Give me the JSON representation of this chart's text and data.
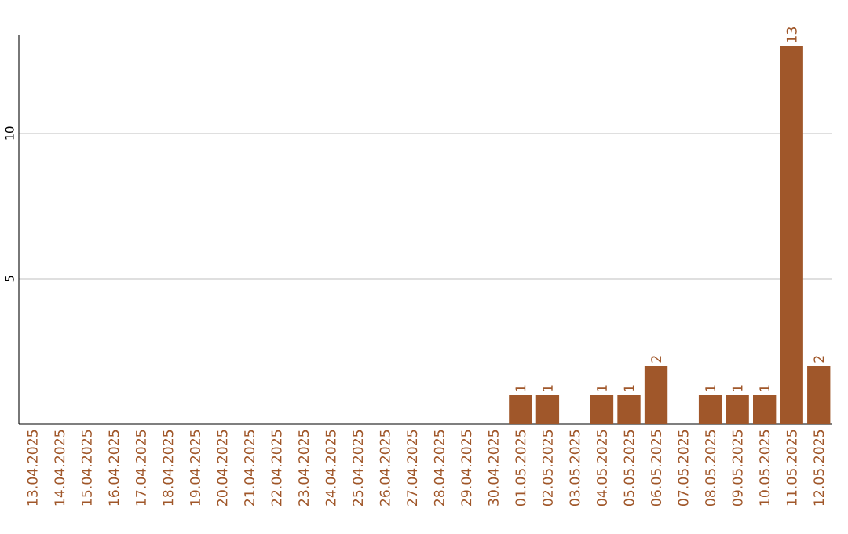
{
  "chart_data": {
    "type": "bar",
    "categories": [
      "13.04.2025",
      "14.04.2025",
      "15.04.2025",
      "16.04.2025",
      "17.04.2025",
      "18.04.2025",
      "19.04.2025",
      "20.04.2025",
      "21.04.2025",
      "22.04.2025",
      "23.04.2025",
      "24.04.2025",
      "25.04.2025",
      "26.04.2025",
      "27.04.2025",
      "28.04.2025",
      "29.04.2025",
      "30.04.2025",
      "01.05.2025",
      "02.05.2025",
      "03.05.2025",
      "04.05.2025",
      "05.05.2025",
      "06.05.2025",
      "07.05.2025",
      "08.05.2025",
      "09.05.2025",
      "10.05.2025",
      "11.05.2025",
      "12.05.2025"
    ],
    "values": [
      0,
      0,
      0,
      0,
      0,
      0,
      0,
      0,
      0,
      0,
      0,
      0,
      0,
      0,
      0,
      0,
      0,
      0,
      1,
      1,
      0,
      1,
      1,
      2,
      0,
      1,
      1,
      1,
      13,
      2
    ],
    "value_labels": [
      null,
      null,
      null,
      null,
      null,
      null,
      null,
      null,
      null,
      null,
      null,
      null,
      null,
      null,
      null,
      null,
      null,
      null,
      "1",
      "1",
      null,
      "1",
      "1",
      "2",
      null,
      "1",
      "1",
      "1",
      "13",
      "2"
    ],
    "color": "#a0572a",
    "ylim": [
      0,
      13.4
    ],
    "yticks": [
      5,
      10
    ],
    "grid": "y"
  }
}
